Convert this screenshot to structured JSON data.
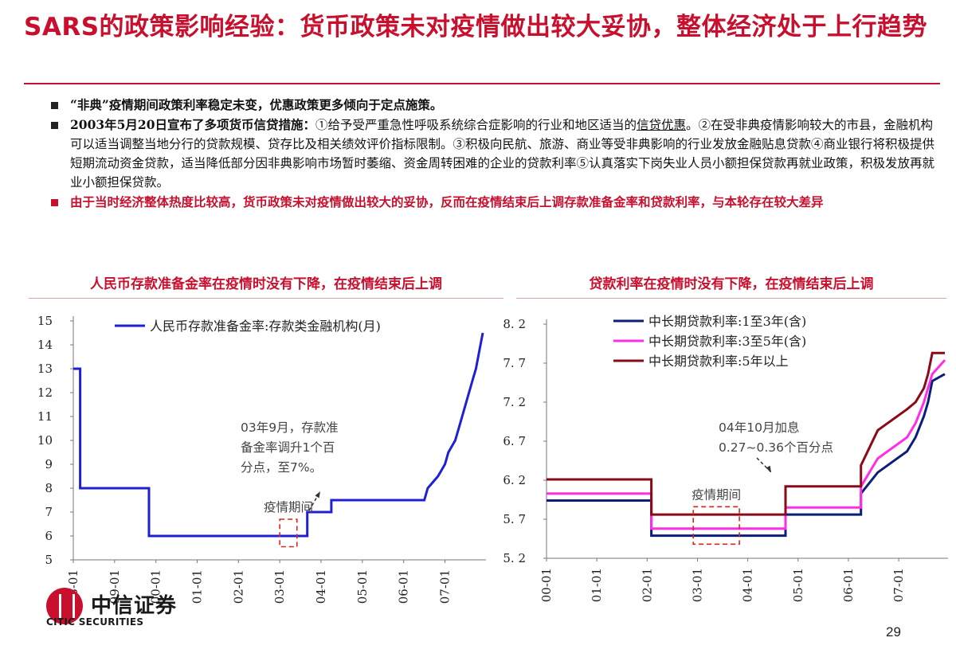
{
  "title": "SARS的政策影响经验：货币政策未对疫情做出较大妥协，整体经济处于上行趋势",
  "bullets": [
    {
      "text": "“非典”疫情期间政策利率稳定未变，优惠政策更多倾向于定点施策。"
    },
    {
      "lead": "2003年5月20日宣布了多项货币信贷措施：",
      "text_a": "①给予受严重急性呼吸系统综合症影响的行业和地区适当的",
      "underline": "信贷优惠",
      "text_b": "。②在受非典疫情影响较大的市县，金融机构可以适当调整当地分行的贷款规模、贷存比及相关绩效评价指标限制。③积极向民航、旅游、商业等受非典影响的行业发放金融贴息贷款④商业银行将积极提供短期流动资金贷款，适当降低部分因非典影响市场暂时萎缩、资金周转困难的企业的贷款利率⑤认真落实下岗失业人员小额担保贷款再就业政策，积极发放再就业小额担保贷款。"
    },
    {
      "text": "由于当时经济整体热度比较高，货币政策未对疫情做出较大的妥协，反而在疫情结束后上调存款准备金率和贷款利率，与本轮存在较大差异"
    }
  ],
  "panels": {
    "left_title": "人民币存款准备金率在疫情时没有下降，在疫情结束后上调",
    "right_title": "贷款利率在疫情时没有下降，在疫情结束后上调"
  },
  "chart_data": [
    {
      "type": "line",
      "series": [
        {
          "name": "人民币存款准备金率:存款类金融机构(月)",
          "color": "#1f1fd6",
          "points": [
            [
              "1998-01",
              13
            ],
            [
              "1998-03",
              13
            ],
            [
              "1998-03",
              8
            ],
            [
              "1999-11",
              8
            ],
            [
              "1999-11",
              6
            ],
            [
              "2003-09",
              6
            ],
            [
              "2003-09",
              7
            ],
            [
              "2004-04",
              7
            ],
            [
              "2004-04",
              7.5
            ],
            [
              "2006-07",
              7.5
            ],
            [
              "2006-08",
              8
            ],
            [
              "2006-11",
              8.5
            ],
            [
              "2007-01",
              9
            ],
            [
              "2007-02",
              9.5
            ],
            [
              "2007-04",
              10
            ],
            [
              "2007-05",
              10.5
            ],
            [
              "2007-06",
              11
            ],
            [
              "2007-08",
              12
            ],
            [
              "2007-09",
              12.5
            ],
            [
              "2007-10",
              13
            ],
            [
              "2007-12",
              14.5
            ]
          ]
        }
      ],
      "x_ticks": [
        "98-01",
        "99-01",
        "00-01",
        "01-01",
        "02-01",
        "03-01",
        "04-01",
        "05-01",
        "06-01",
        "07-01"
      ],
      "y_ticks": [
        5,
        6,
        7,
        8,
        9,
        10,
        11,
        12,
        13,
        14,
        15
      ],
      "ylim": [
        5,
        15
      ],
      "x_range": [
        "1998-01",
        "2007-12"
      ],
      "annotations": {
        "box_label": "疫情期间",
        "callout_lines": [
          "03年9月，存款准",
          "备金率调升1个百",
          "分点，至7%。"
        ]
      }
    },
    {
      "type": "line",
      "series": [
        {
          "name": "中长期贷款利率:1至3年(含)",
          "color": "#0a1f7a",
          "points": [
            [
              "2000-01",
              5.94
            ],
            [
              "2002-02",
              5.94
            ],
            [
              "2002-02",
              5.49
            ],
            [
              "2004-10",
              5.49
            ],
            [
              "2004-10",
              5.76
            ],
            [
              "2006-04",
              5.76
            ],
            [
              "2006-04",
              6.03
            ],
            [
              "2006-08",
              6.3
            ],
            [
              "2007-03",
              6.57
            ],
            [
              "2007-05",
              6.75
            ],
            [
              "2007-07",
              7.02
            ],
            [
              "2007-08",
              7.2
            ],
            [
              "2007-09",
              7.47
            ],
            [
              "2007-12",
              7.56
            ]
          ]
        },
        {
          "name": "中长期贷款利率:3至5年(含)",
          "color": "#ff2ee6",
          "points": [
            [
              "2000-01",
              6.03
            ],
            [
              "2002-02",
              6.03
            ],
            [
              "2002-02",
              5.58
            ],
            [
              "2004-10",
              5.58
            ],
            [
              "2004-10",
              5.85
            ],
            [
              "2006-04",
              5.85
            ],
            [
              "2006-04",
              6.12
            ],
            [
              "2006-08",
              6.48
            ],
            [
              "2007-03",
              6.75
            ],
            [
              "2007-05",
              6.93
            ],
            [
              "2007-07",
              7.2
            ],
            [
              "2007-08",
              7.38
            ],
            [
              "2007-09",
              7.56
            ],
            [
              "2007-12",
              7.74
            ]
          ]
        },
        {
          "name": "中长期贷款利率:5年以上",
          "color": "#8b0a1a",
          "points": [
            [
              "2000-01",
              6.21
            ],
            [
              "2002-02",
              6.21
            ],
            [
              "2002-02",
              5.76
            ],
            [
              "2004-10",
              5.76
            ],
            [
              "2004-10",
              6.12
            ],
            [
              "2006-04",
              6.12
            ],
            [
              "2006-04",
              6.39
            ],
            [
              "2006-08",
              6.84
            ],
            [
              "2007-03",
              7.11
            ],
            [
              "2007-05",
              7.2
            ],
            [
              "2007-07",
              7.38
            ],
            [
              "2007-08",
              7.56
            ],
            [
              "2007-09",
              7.83
            ],
            [
              "2007-12",
              7.83
            ]
          ]
        }
      ],
      "x_ticks": [
        "00-01",
        "01-01",
        "02-01",
        "03-01",
        "04-01",
        "05-01",
        "06-01",
        "07-01"
      ],
      "y_ticks": [
        5.2,
        5.7,
        6.2,
        6.7,
        7.2,
        7.7,
        8.2
      ],
      "y_tick_labels": [
        "5. 2",
        "5. 7",
        "6. 2",
        "6. 7",
        "7. 2",
        "7. 7",
        "8. 2"
      ],
      "ylim": [
        5.2,
        8.2
      ],
      "x_range": [
        "2000-01",
        "2007-12"
      ],
      "annotations": {
        "box_label": "疫情期间",
        "callout_lines": [
          "04年10月加息",
          "0.27~0.36个百分点"
        ]
      }
    }
  ],
  "footer": {
    "logo_cn": "中信证券",
    "logo_en": "CITIC SECURITIES",
    "page_number": "29"
  },
  "colors": {
    "accent": "#c8102e"
  }
}
